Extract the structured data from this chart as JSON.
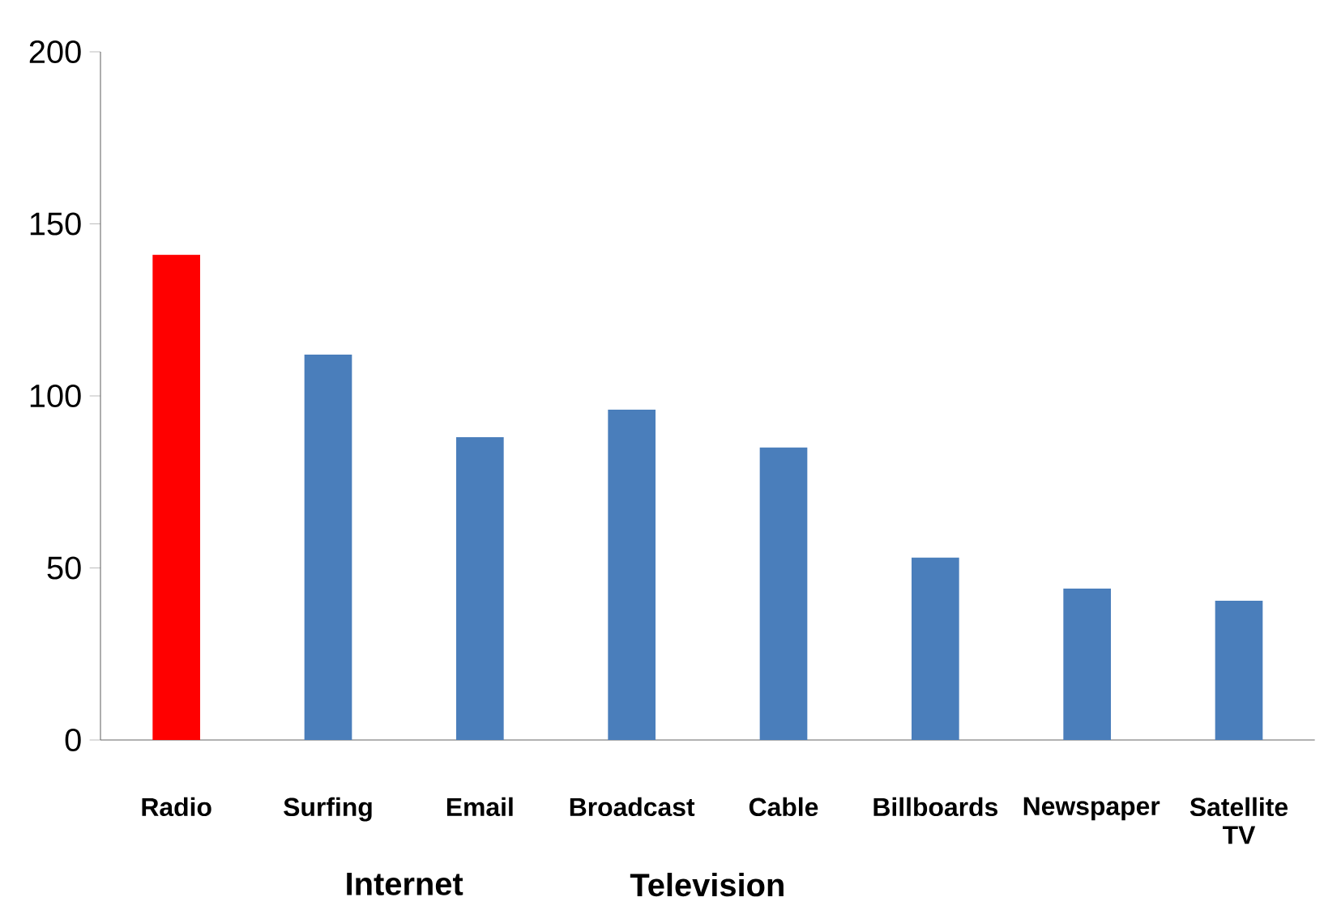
{
  "chart_data": {
    "type": "bar",
    "categories": [
      "Radio",
      "Surfing",
      "Email",
      "Broadcast",
      "Cable",
      "Billboards",
      "Newspaper",
      "Satellite TV"
    ],
    "values": [
      141,
      112,
      88,
      96,
      85,
      53,
      44,
      40.5
    ],
    "colors": [
      "#ff0000",
      "#4a7ebb",
      "#4a7ebb",
      "#4a7ebb",
      "#4a7ebb",
      "#4a7ebb",
      "#4a7ebb",
      "#4a7ebb"
    ],
    "ylim": [
      0,
      200
    ],
    "yticks": [
      0,
      50,
      100,
      150,
      200
    ],
    "annotations": [
      "Internet",
      "Television"
    ],
    "grid": false
  }
}
